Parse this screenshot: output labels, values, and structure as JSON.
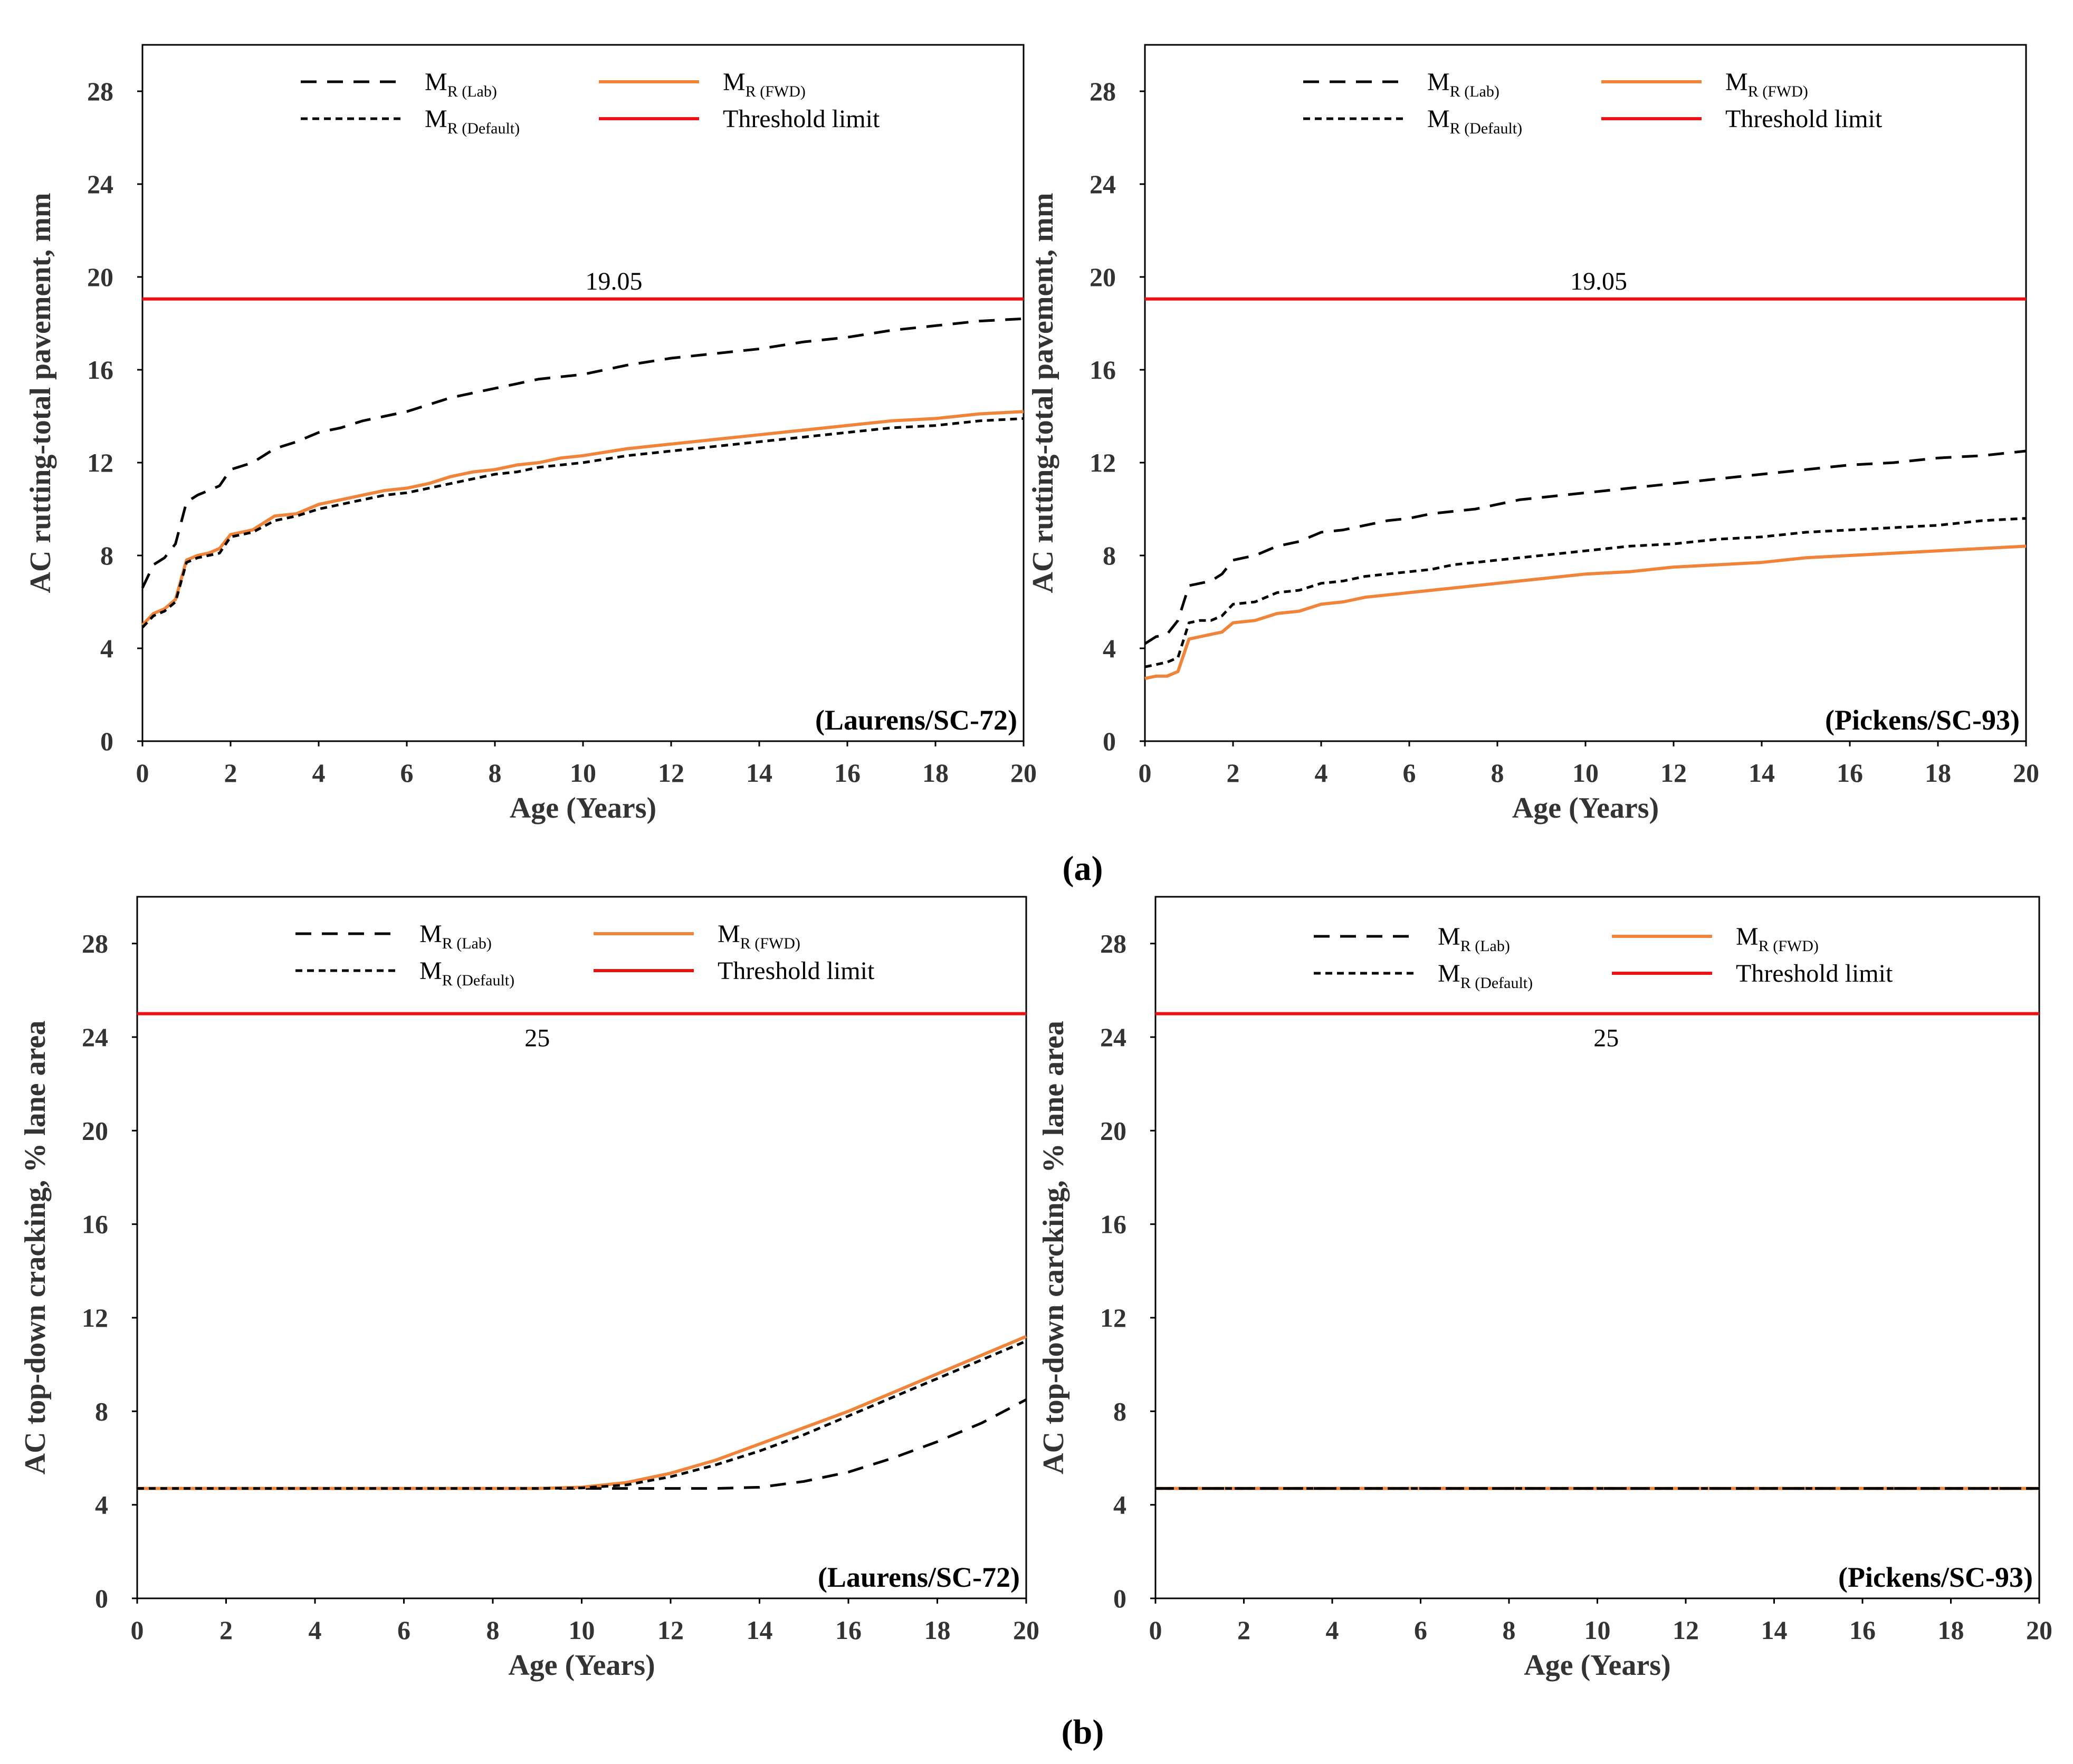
{
  "figure_labels": [
    "(a)",
    "(b)"
  ],
  "colors": {
    "lab": "#000000",
    "default": "#000000",
    "fwd": "#f0843a",
    "threshold": "#ee1111",
    "frame": "#000000",
    "text": "#333333"
  },
  "legend": {
    "lab": {
      "main": "M",
      "sub": "R (Lab)"
    },
    "default": {
      "main": "M",
      "sub": "R (Default)"
    },
    "fwd": {
      "main": "M",
      "sub": "R (FWD)"
    },
    "threshold": {
      "label": "Threshold limit"
    }
  },
  "chart_data": [
    {
      "type": "line",
      "group": "(a)",
      "panel_label": "(Laurens/SC-72)",
      "xlabel": "Age (Years)",
      "ylabel": "AC rutting-total pavement, mm",
      "xlim": [
        0,
        20
      ],
      "ylim": [
        0,
        30
      ],
      "xticks": [
        0,
        2,
        4,
        6,
        8,
        10,
        12,
        14,
        16,
        18,
        20
      ],
      "yticks": [
        0,
        4,
        8,
        12,
        16,
        20,
        24,
        28
      ],
      "threshold": 19.05,
      "threshold_label": "19.05",
      "threshold_label_x": 10.7,
      "threshold_label_dir": "above",
      "x": [
        0,
        0.25,
        0.5,
        0.75,
        1,
        1.25,
        1.5,
        1.75,
        2,
        2.5,
        3,
        3.5,
        4,
        4.5,
        5,
        5.5,
        6,
        6.5,
        7,
        7.5,
        8,
        8.5,
        9,
        9.5,
        10,
        11,
        12,
        13,
        14,
        15,
        16,
        17,
        18,
        19,
        20
      ],
      "series": [
        {
          "name": "MR (Lab)",
          "key": "lab",
          "values": [
            6.6,
            7.6,
            7.9,
            8.5,
            10.3,
            10.6,
            10.8,
            11.0,
            11.7,
            12.0,
            12.6,
            12.9,
            13.3,
            13.5,
            13.8,
            14.0,
            14.2,
            14.5,
            14.8,
            15.0,
            15.2,
            15.4,
            15.6,
            15.7,
            15.8,
            16.2,
            16.5,
            16.7,
            16.9,
            17.2,
            17.4,
            17.7,
            17.9,
            18.1,
            18.2
          ]
        },
        {
          "name": "MR (FWD)",
          "key": "fwd",
          "values": [
            5.0,
            5.5,
            5.7,
            6.1,
            7.8,
            8.0,
            8.1,
            8.3,
            8.9,
            9.1,
            9.7,
            9.8,
            10.2,
            10.4,
            10.6,
            10.8,
            10.9,
            11.1,
            11.4,
            11.6,
            11.7,
            11.9,
            12.0,
            12.2,
            12.3,
            12.6,
            12.8,
            13.0,
            13.2,
            13.4,
            13.6,
            13.8,
            13.9,
            14.1,
            14.2
          ]
        },
        {
          "name": "MR (Default)",
          "key": "default",
          "values": [
            4.9,
            5.4,
            5.6,
            6.0,
            7.7,
            7.9,
            8.0,
            8.1,
            8.8,
            9.0,
            9.5,
            9.7,
            10.0,
            10.2,
            10.4,
            10.6,
            10.7,
            10.9,
            11.1,
            11.3,
            11.5,
            11.6,
            11.8,
            11.9,
            12.0,
            12.3,
            12.5,
            12.7,
            12.9,
            13.1,
            13.3,
            13.5,
            13.6,
            13.8,
            13.9
          ]
        }
      ]
    },
    {
      "type": "line",
      "group": "(a)",
      "panel_label": "(Pickens/SC-93)",
      "xlabel": "Age (Years)",
      "ylabel": "AC rutting-total pavement, mm",
      "xlim": [
        0,
        20
      ],
      "ylim": [
        0,
        30
      ],
      "xticks": [
        0,
        2,
        4,
        6,
        8,
        10,
        12,
        14,
        16,
        18,
        20
      ],
      "yticks": [
        0,
        4,
        8,
        12,
        16,
        20,
        24,
        28
      ],
      "threshold": 19.05,
      "threshold_label": "19.05",
      "threshold_label_x": 10.3,
      "threshold_label_dir": "above",
      "x": [
        0,
        0.25,
        0.5,
        0.75,
        1,
        1.25,
        1.5,
        1.75,
        2,
        2.5,
        3,
        3.5,
        4,
        4.5,
        5,
        5.5,
        6,
        6.5,
        7,
        7.5,
        8,
        8.5,
        9,
        9.5,
        10,
        11,
        12,
        13,
        14,
        15,
        16,
        17,
        18,
        19,
        20
      ],
      "series": [
        {
          "name": "MR (Lab)",
          "key": "lab",
          "values": [
            4.2,
            4.5,
            4.6,
            5.2,
            6.7,
            6.8,
            6.9,
            7.2,
            7.8,
            8.0,
            8.4,
            8.6,
            9.0,
            9.1,
            9.3,
            9.5,
            9.6,
            9.8,
            9.9,
            10.0,
            10.2,
            10.4,
            10.5,
            10.6,
            10.7,
            10.9,
            11.1,
            11.3,
            11.5,
            11.7,
            11.9,
            12.0,
            12.2,
            12.3,
            12.5
          ]
        },
        {
          "name": "MR (Default)",
          "key": "default",
          "values": [
            3.2,
            3.3,
            3.4,
            3.6,
            5.1,
            5.2,
            5.2,
            5.4,
            5.9,
            6.0,
            6.4,
            6.5,
            6.8,
            6.9,
            7.1,
            7.2,
            7.3,
            7.4,
            7.6,
            7.7,
            7.8,
            7.9,
            8.0,
            8.1,
            8.2,
            8.4,
            8.5,
            8.7,
            8.8,
            9.0,
            9.1,
            9.2,
            9.3,
            9.5,
            9.6
          ]
        },
        {
          "name": "MR (FWD)",
          "key": "fwd",
          "values": [
            2.7,
            2.8,
            2.8,
            3.0,
            4.4,
            4.5,
            4.6,
            4.7,
            5.1,
            5.2,
            5.5,
            5.6,
            5.9,
            6.0,
            6.2,
            6.3,
            6.4,
            6.5,
            6.6,
            6.7,
            6.8,
            6.9,
            7.0,
            7.1,
            7.2,
            7.3,
            7.5,
            7.6,
            7.7,
            7.9,
            8.0,
            8.1,
            8.2,
            8.3,
            8.4
          ]
        }
      ]
    },
    {
      "type": "line",
      "group": "(b)",
      "panel_label": "(Laurens/SC-72)",
      "xlabel": "Age (Years)",
      "ylabel": "AC top-down cracking, % lane area",
      "xlim": [
        0,
        20
      ],
      "ylim": [
        0,
        30
      ],
      "xticks": [
        0,
        2,
        4,
        6,
        8,
        10,
        12,
        14,
        16,
        18,
        20
      ],
      "yticks": [
        0,
        4,
        8,
        12,
        16,
        20,
        24,
        28
      ],
      "threshold": 25,
      "threshold_label": "25",
      "threshold_label_x": 9.0,
      "threshold_label_dir": "below",
      "x": [
        0,
        1,
        2,
        3,
        4,
        5,
        6,
        7,
        8,
        9,
        10,
        11,
        12,
        13,
        14,
        15,
        16,
        17,
        18,
        19,
        20
      ],
      "series": [
        {
          "name": "MR (Lab)",
          "key": "lab",
          "values": [
            4.7,
            4.7,
            4.7,
            4.7,
            4.7,
            4.7,
            4.7,
            4.7,
            4.7,
            4.7,
            4.7,
            4.7,
            4.7,
            4.7,
            4.75,
            5.0,
            5.4,
            6.0,
            6.7,
            7.5,
            8.5
          ]
        },
        {
          "name": "MR (FWD)",
          "key": "fwd",
          "values": [
            4.7,
            4.7,
            4.7,
            4.7,
            4.7,
            4.7,
            4.7,
            4.7,
            4.7,
            4.7,
            4.75,
            4.95,
            5.35,
            5.9,
            6.6,
            7.3,
            8.0,
            8.8,
            9.6,
            10.4,
            11.2
          ]
        },
        {
          "name": "MR (Default)",
          "key": "default",
          "values": [
            4.7,
            4.7,
            4.7,
            4.7,
            4.7,
            4.7,
            4.7,
            4.7,
            4.7,
            4.7,
            4.72,
            4.85,
            5.2,
            5.7,
            6.3,
            7.0,
            7.8,
            8.6,
            9.4,
            10.2,
            11.0
          ]
        }
      ]
    },
    {
      "type": "line",
      "group": "(b)",
      "panel_label": "(Pickens/SC-93)",
      "xlabel": "Age (Years)",
      "ylabel": "AC top-down carcking, % lane area",
      "xlim": [
        0,
        20
      ],
      "ylim": [
        0,
        30
      ],
      "xticks": [
        0,
        2,
        4,
        6,
        8,
        10,
        12,
        14,
        16,
        18,
        20
      ],
      "yticks": [
        0,
        4,
        8,
        12,
        16,
        20,
        24,
        28
      ],
      "threshold": 25,
      "threshold_label": "25",
      "threshold_label_x": 10.2,
      "threshold_label_dir": "below",
      "x": [
        0,
        20
      ],
      "series": [
        {
          "name": "MR (FWD)",
          "key": "fwd",
          "values": [
            4.7,
            4.7
          ]
        },
        {
          "name": "MR (Lab)",
          "key": "lab",
          "values": [
            4.7,
            4.7
          ]
        },
        {
          "name": "MR (Default)",
          "key": "default",
          "values": [
            4.7,
            4.7
          ]
        }
      ]
    }
  ]
}
